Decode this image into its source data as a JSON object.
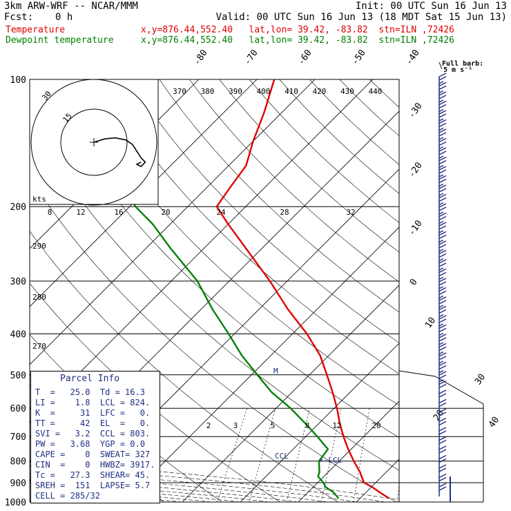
{
  "header": {
    "model": "3km ARW-WRF -- NCAR/MMM",
    "init": "Init: 00 UTC Sun 16 Jun 13",
    "fcst_label": "Fcst:",
    "fcst_value": "0 h",
    "valid": "Valid: 00 UTC Sun 16 Jun 13 (18 MDT Sat 15 Jun 13)",
    "temp_label": "Temperature",
    "temp_info": "x,y=876.44,552.40   lat,lon= 39.42, -83.82  stn=ILN ,72426",
    "dew_label": "Dewpoint temperature",
    "dew_info": "x,y=876.44,552.40   lat,lon= 39.42, -83.82  stn=ILN ,72426"
  },
  "barb_key": {
    "line1": "Full barb:",
    "line2": "5 m s⁻¹"
  },
  "colors": {
    "temperature": "#e00000",
    "dewpoint": "#008000",
    "barbs": "#203080",
    "parcel_text": "#203080"
  },
  "hodograph": {
    "ring_labels": [
      "15",
      "30"
    ],
    "units": "kts"
  },
  "theta_labels": [
    "370",
    "380",
    "390",
    "400",
    "410",
    "420",
    "430",
    "440"
  ],
  "mixing_top_labels": [
    "8",
    "12",
    "16",
    "20",
    "24",
    "28",
    "32"
  ],
  "mixing_bottom_labels": [
    "2",
    "3",
    "5",
    "8",
    "12",
    "20"
  ],
  "theta_side_labels": [
    "290",
    "280",
    "270"
  ],
  "skew_labels": [
    "-80",
    "-70",
    "-60",
    "-50",
    "-40",
    "-30",
    "-20",
    "-10",
    "0",
    "10",
    "20",
    "30",
    "40"
  ],
  "annotations": {
    "ccl": "CCL",
    "lcl": "LCL",
    "marker": "M"
  },
  "parcel": {
    "title": "Parcel Info",
    "rows": [
      "T  =   25.0  Td = 16.3",
      "LI =    1.8  LCL = 824.",
      "K  =     31  LFC =   0.",
      "TT =     42  EL  =   0.",
      "SVI =   3.2  CCL = 803.",
      "PW =   3.68  YGP = 0.0",
      "CAPE =    0  SWEAT= 327",
      "CIN  =    0  HWBZ= 3917.",
      "Tc =   27.3  SHEAR= 45.",
      "SREH =  151  LAPSE= 5.7",
      "CELL = 285/32"
    ]
  },
  "chart_data": {
    "type": "line",
    "title": "3km ARW-WRF -- NCAR/MMM",
    "xlabel": "",
    "ylabel": "",
    "y_scale": "log",
    "ylim": [
      1000,
      100
    ],
    "yticks": [
      100,
      200,
      300,
      400,
      500,
      600,
      700,
      800,
      900,
      1000
    ],
    "series": [
      {
        "name": "Temperature",
        "color": "#e00000",
        "pressure": [
          980,
          950,
          920,
          900,
          870,
          850,
          800,
          750,
          700,
          650,
          600,
          550,
          500,
          450,
          400,
          350,
          300,
          250,
          220,
          200,
          180,
          160,
          140,
          120,
          100
        ],
        "values": [
          25.0,
          22.5,
          20.0,
          18.0,
          16.5,
          15.5,
          12.5,
          9.5,
          6.5,
          3.5,
          0.5,
          -3.0,
          -7.0,
          -11.5,
          -17.5,
          -25.0,
          -33.0,
          -43.0,
          -50.0,
          -55.0,
          -56.0,
          -57.0,
          -60.0,
          -63.0,
          -67.0
        ]
      },
      {
        "name": "Dewpoint temperature",
        "color": "#008000",
        "pressure": [
          980,
          950,
          920,
          900,
          870,
          850,
          800,
          750,
          700,
          650,
          600,
          550,
          500,
          450,
          400,
          350,
          300,
          250,
          220,
          200,
          180,
          160,
          140,
          120,
          100
        ],
        "values": [
          16.3,
          14.5,
          12.0,
          11.0,
          9.0,
          8.5,
          6.5,
          6.0,
          2.0,
          -2.5,
          -7.5,
          -13.5,
          -19.0,
          -25.0,
          -31.0,
          -38.0,
          -45.5,
          -56.0,
          -63.0,
          -69.0,
          -74.0,
          -79.0,
          -84.0,
          -88.0,
          -93.0
        ]
      }
    ],
    "hodograph_uv_kts": [
      [
        0,
        0
      ],
      [
        5,
        3
      ],
      [
        10,
        4
      ],
      [
        15,
        2
      ],
      [
        18,
        -2
      ],
      [
        20,
        -8
      ],
      [
        22,
        -14
      ],
      [
        24,
        -18
      ],
      [
        22,
        -22
      ],
      [
        20,
        -20
      ],
      [
        22,
        -18
      ]
    ]
  }
}
